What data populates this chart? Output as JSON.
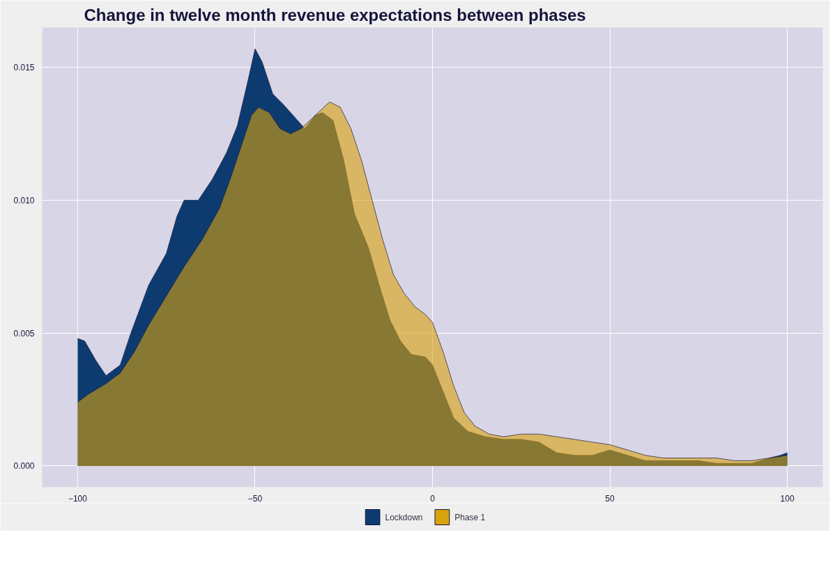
{
  "chart_data": {
    "type": "area",
    "title": "Change in twelve month revenue expectations between phases",
    "series": [
      {
        "name": "Lockdown",
        "color": "#0d3b70",
        "x": [
          -100,
          -98,
          -95,
          -92,
          -88,
          -85,
          -80,
          -75,
          -72,
          -70,
          -66,
          -62,
          -58,
          -55,
          -52,
          -50,
          -48,
          -45,
          -42,
          -38,
          -36,
          -33,
          -31,
          -28,
          -25,
          -22,
          -18,
          -15,
          -12,
          -9,
          -6,
          -2,
          0,
          3,
          6,
          10,
          15,
          20,
          25,
          30,
          35,
          40,
          45,
          50,
          55,
          60,
          65,
          70,
          75,
          80,
          85,
          90,
          95,
          98,
          100
        ],
        "values": [
          0.0048,
          0.0047,
          0.004,
          0.0034,
          0.0038,
          0.005,
          0.0068,
          0.008,
          0.0094,
          0.01,
          0.01,
          0.0108,
          0.0118,
          0.0128,
          0.0145,
          0.0157,
          0.0152,
          0.014,
          0.0136,
          0.013,
          0.0127,
          0.0132,
          0.0133,
          0.013,
          0.0115,
          0.0095,
          0.0082,
          0.0068,
          0.0055,
          0.0047,
          0.0042,
          0.0041,
          0.0038,
          0.0028,
          0.0018,
          0.0013,
          0.0011,
          0.001,
          0.001,
          0.0009,
          0.0005,
          0.0004,
          0.0004,
          0.0006,
          0.0004,
          0.0002,
          0.0002,
          0.0002,
          0.0002,
          0.0001,
          0.0001,
          0.0001,
          0.0003,
          0.0004,
          0.0005
        ]
      },
      {
        "name": "Phase 1",
        "color": "#d8a20c",
        "x": [
          -100,
          -97,
          -92,
          -88,
          -84,
          -80,
          -75,
          -70,
          -65,
          -60,
          -57,
          -54,
          -51,
          -49,
          -46,
          -43,
          -40,
          -37,
          -33,
          -29,
          -26,
          -23,
          -20,
          -17,
          -14,
          -11,
          -8,
          -5,
          -2,
          0,
          3,
          6,
          9,
          12,
          16,
          20,
          25,
          30,
          35,
          40,
          45,
          50,
          55,
          60,
          65,
          70,
          75,
          80,
          85,
          90,
          95,
          100
        ],
        "values": [
          0.0024,
          0.0027,
          0.0031,
          0.0035,
          0.0043,
          0.0053,
          0.0064,
          0.0075,
          0.0085,
          0.0097,
          0.0108,
          0.012,
          0.0132,
          0.0135,
          0.0133,
          0.0127,
          0.0125,
          0.0127,
          0.0132,
          0.0137,
          0.0135,
          0.0127,
          0.0115,
          0.01,
          0.0085,
          0.0072,
          0.0065,
          0.006,
          0.0057,
          0.0054,
          0.0043,
          0.003,
          0.002,
          0.0015,
          0.0012,
          0.0011,
          0.0012,
          0.0012,
          0.0011,
          0.001,
          0.0009,
          0.0008,
          0.0006,
          0.0004,
          0.0003,
          0.0003,
          0.0003,
          0.0003,
          0.0002,
          0.0002,
          0.0003,
          0.0004
        ]
      }
    ],
    "xlim": [
      -110,
      110
    ],
    "xticks": [
      -100,
      -50,
      0,
      50,
      100
    ],
    "ylim": [
      -0.0008,
      0.0165
    ],
    "yticks": [
      {
        "value": 0,
        "label": "0.000"
      },
      {
        "value": 0.005,
        "label": "0.005"
      },
      {
        "value": 0.01,
        "label": "0.010"
      },
      {
        "value": 0.015,
        "label": "0.015"
      }
    ],
    "grid": true,
    "legend": "bottom"
  }
}
